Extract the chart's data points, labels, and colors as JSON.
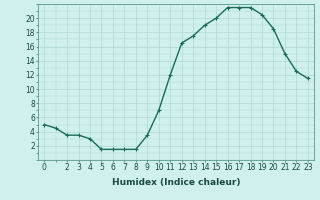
{
  "x": [
    0,
    1,
    2,
    3,
    4,
    5,
    6,
    7,
    8,
    9,
    10,
    11,
    12,
    13,
    14,
    15,
    16,
    17,
    18,
    19,
    20,
    21,
    22,
    23
  ],
  "y": [
    5,
    4.5,
    3.5,
    3.5,
    3,
    1.5,
    1.5,
    1.5,
    1.5,
    3.5,
    7,
    12,
    16.5,
    17.5,
    19,
    20,
    21.5,
    21.5,
    21.5,
    20.5,
    18.5,
    15,
    12.5,
    11.5
  ],
  "line_color": "#1a6b5a",
  "marker": "+",
  "marker_size": 3,
  "marker_color": "#1a6b5a",
  "bg_color": "#cff0ec",
  "grid_color": "#b0d8d2",
  "xlabel": "Humidex (Indice chaleur)",
  "xlim": [
    -0.5,
    23.5
  ],
  "ylim": [
    0,
    22
  ],
  "xticks": [
    0,
    2,
    3,
    4,
    5,
    6,
    7,
    8,
    9,
    10,
    11,
    12,
    13,
    14,
    15,
    16,
    17,
    18,
    19,
    20,
    21,
    22,
    23
  ],
  "yticks": [
    2,
    4,
    6,
    8,
    10,
    12,
    14,
    16,
    18,
    20
  ],
  "tick_fontsize": 5.5,
  "xlabel_fontsize": 6.5,
  "line_width": 1.0
}
